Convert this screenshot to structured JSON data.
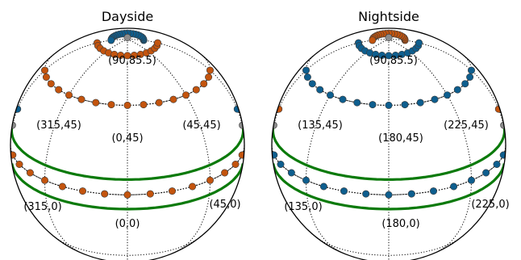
{
  "colors": {
    "rim": "#000000",
    "grid": "#000000",
    "horizon": "#0b7a0b",
    "orange_dot": "#c3540e",
    "blue_dot": "#0e5e8e",
    "gray_dot": "#8c8c8c",
    "dot_edge": "#3a3a3a"
  },
  "panels": [
    {
      "id": "dayside",
      "title": "Dayside",
      "labels": {
        "top": "(90,85.5)",
        "mid_left": "(315,45)",
        "mid_center": "(0,45)",
        "mid_right": "(45,45)",
        "low_left": "(315,0)",
        "low_center": "(0,0)",
        "low_right": "(45,0)"
      },
      "inner_color": "orange_dot",
      "outer_color": "blue_dot"
    },
    {
      "id": "nightside",
      "title": "Nightside",
      "labels": {
        "top": "(90,85.5)",
        "mid_left": "(135,45)",
        "mid_center": "(180,45)",
        "mid_right": "(225,45)",
        "low_left": "(135,0)",
        "low_center": "(180,0)",
        "low_right": "(225,0)"
      },
      "inner_color": "blue_dot",
      "outer_color": "orange_dot"
    }
  ]
}
